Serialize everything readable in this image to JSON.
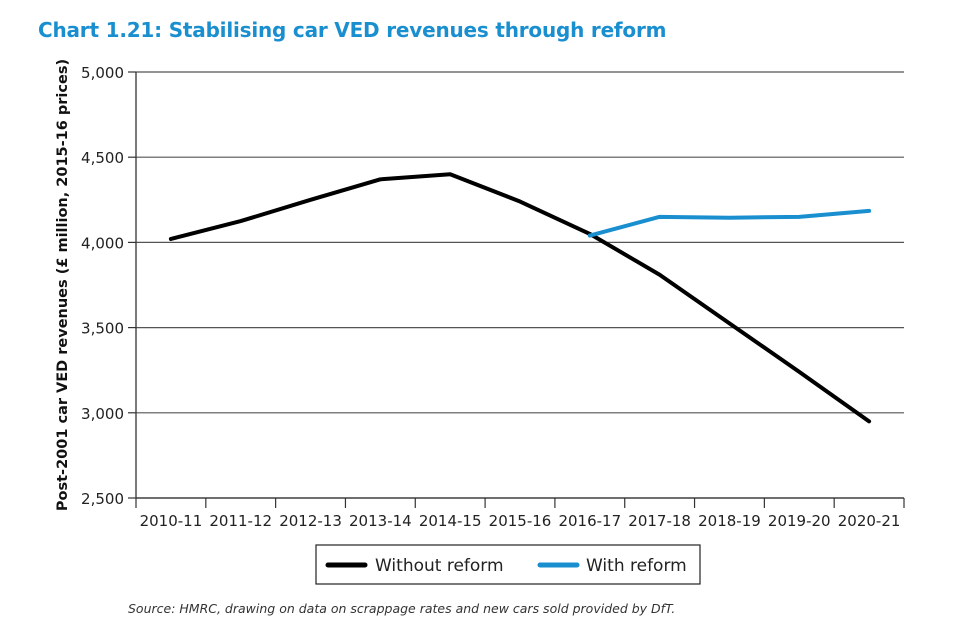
{
  "chart_data": {
    "type": "line",
    "title": "Chart 1.21: Stabilising car VED revenues through reform",
    "xlabel": "",
    "ylabel": "Post-2001 car VED revenues (£ million, 2015-16 prices)",
    "ylim": [
      2500,
      5000
    ],
    "yticks": [
      2500,
      3000,
      3500,
      4000,
      4500,
      5000
    ],
    "ytick_labels": [
      "2,500",
      "3,000",
      "3,500",
      "4,000",
      "4,500",
      "5,000"
    ],
    "grid": true,
    "categories": [
      "2010-11",
      "2011-12",
      "2012-13",
      "2013-14",
      "2014-15",
      "2015-16",
      "2016-17",
      "2017-18",
      "2018-19",
      "2019-20",
      "2020-21"
    ],
    "series": [
      {
        "name": "Without reform",
        "color": "#000000",
        "values": [
          4020,
          4125,
          4250,
          4370,
          4400,
          4240,
          4050,
          3810,
          3525,
          3240,
          2950
        ]
      },
      {
        "name": "With reform",
        "color": "#1a8fd0",
        "values": [
          null,
          null,
          null,
          null,
          null,
          null,
          4040,
          4150,
          4145,
          4150,
          4185
        ]
      }
    ],
    "legend_position": "bottom-center",
    "source": "Source: HMRC, drawing on data on scrappage rates and new cars sold provided by DfT."
  }
}
